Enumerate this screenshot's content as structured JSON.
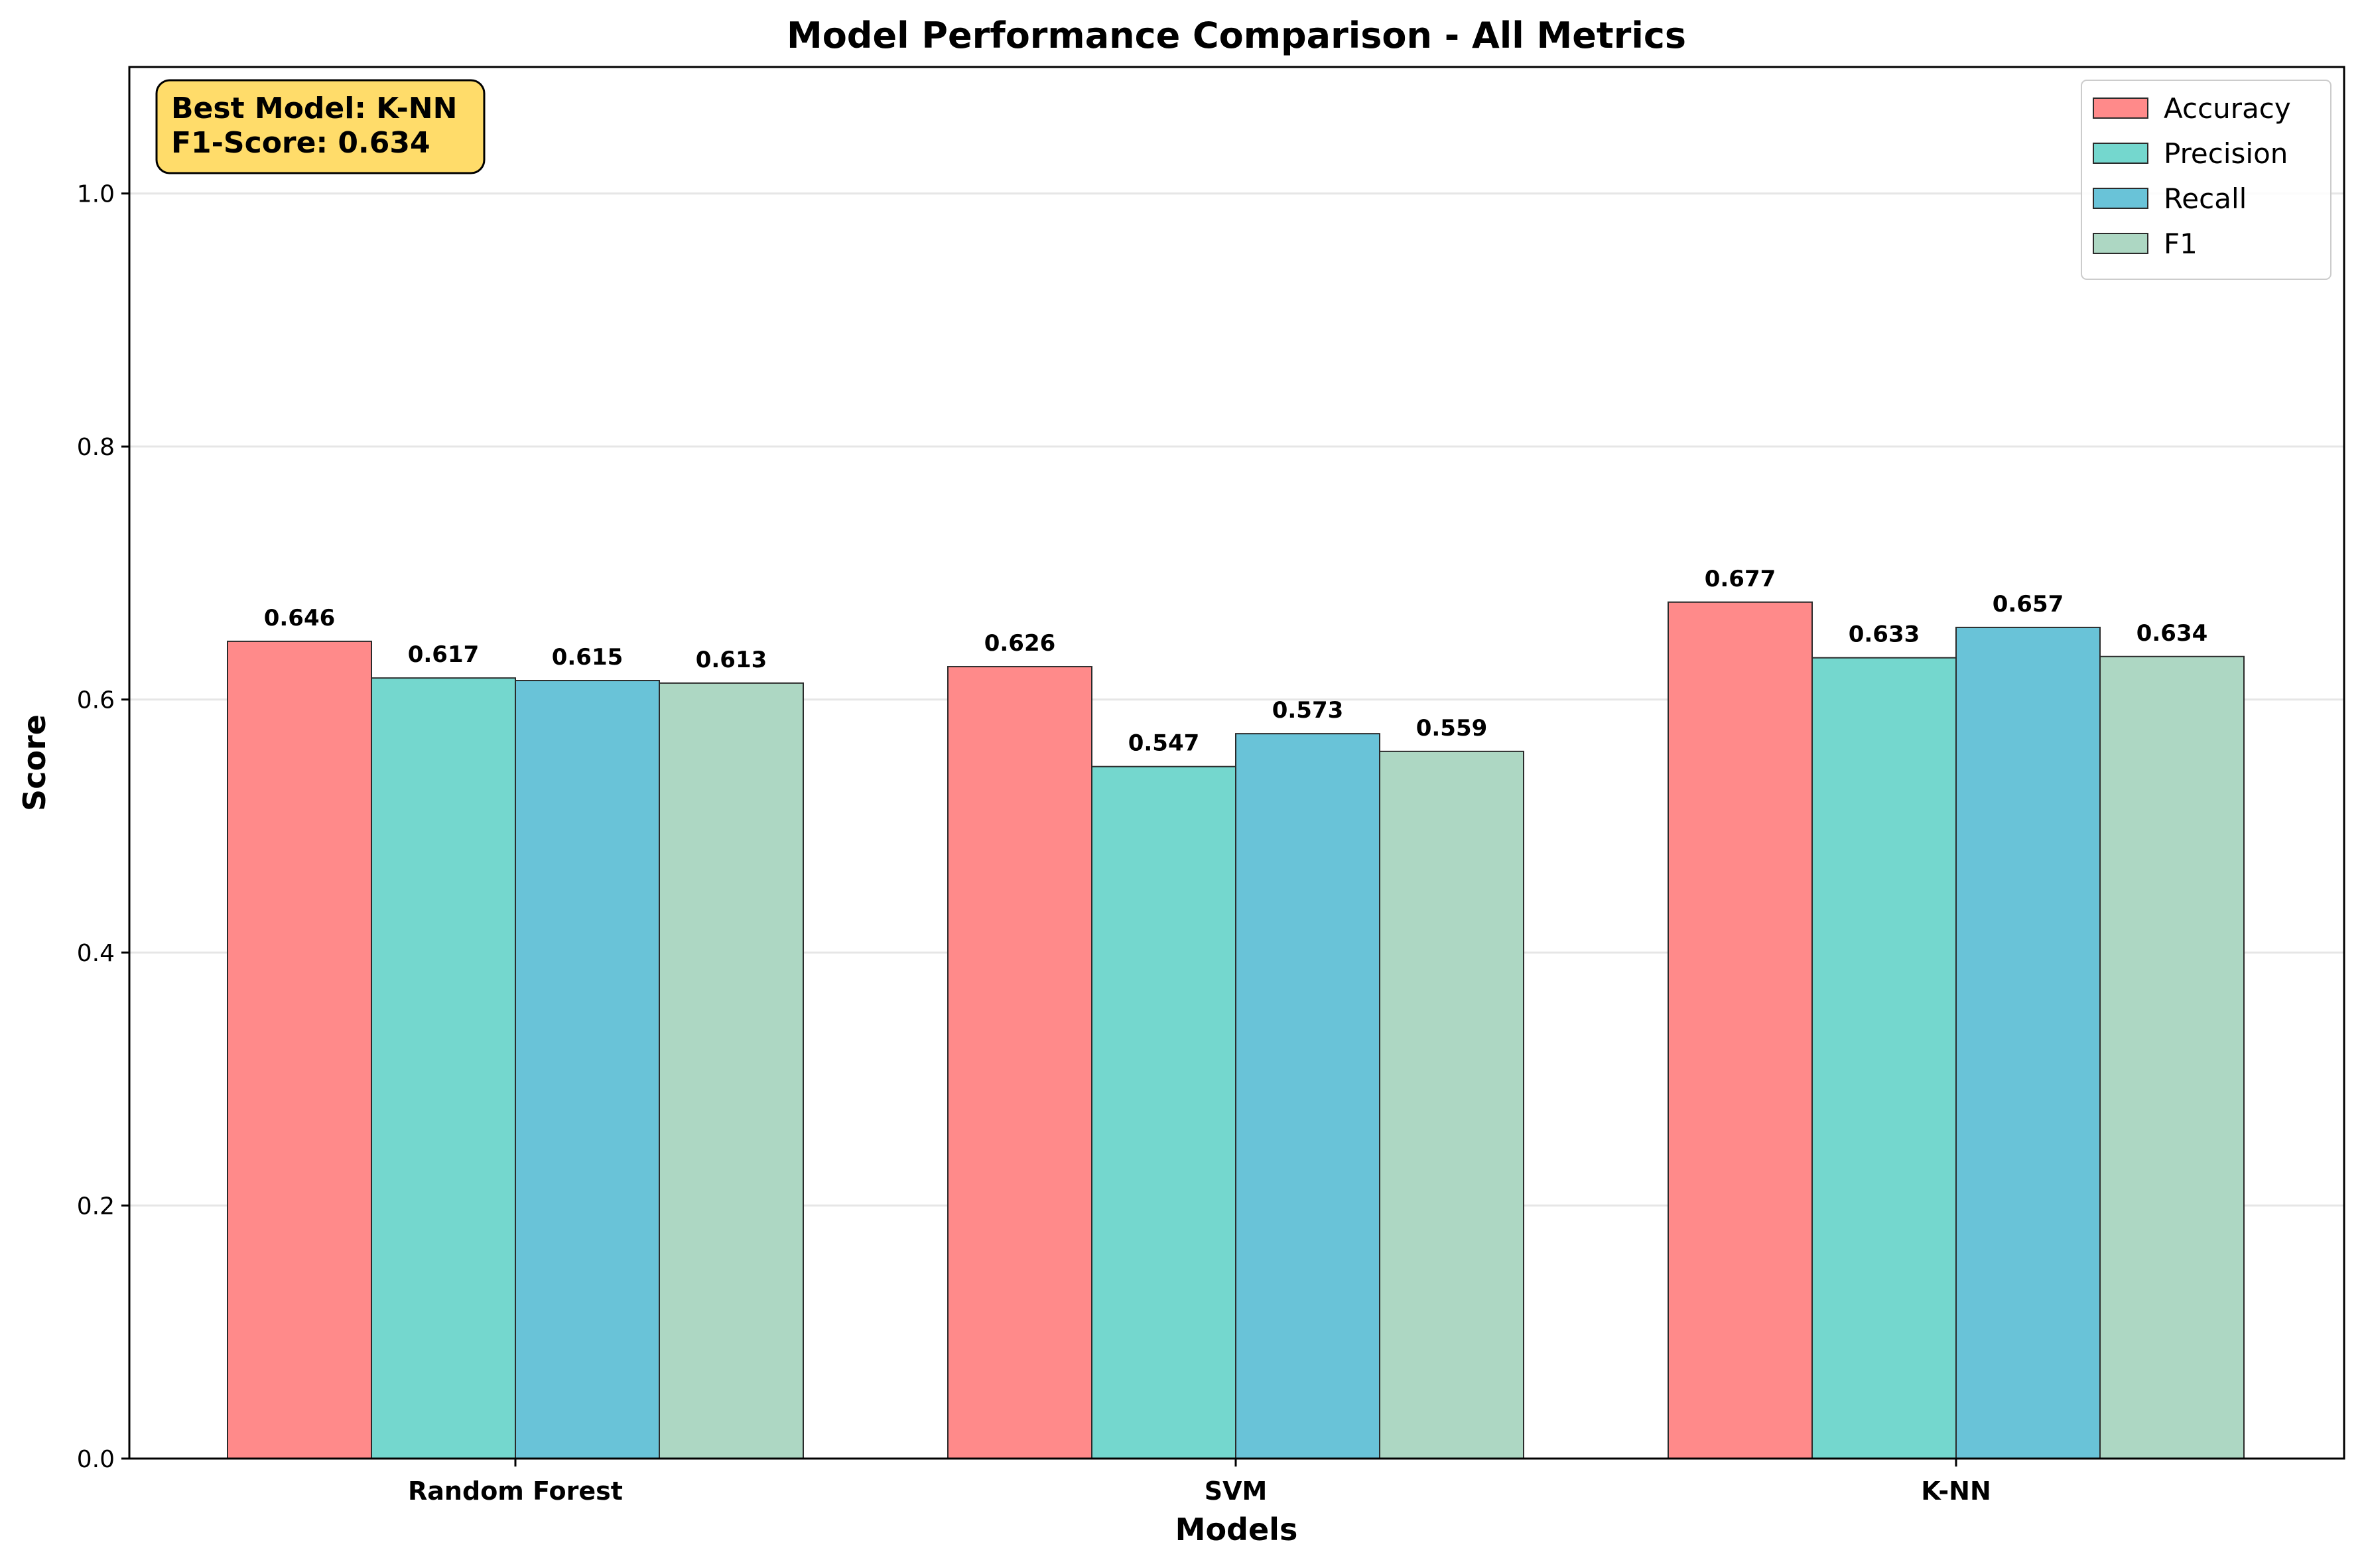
{
  "chart_data": {
    "type": "bar",
    "title": "Model Performance Comparison - All Metrics",
    "xlabel": "Models",
    "ylabel": "Score",
    "categories": [
      "Random Forest",
      "SVM",
      "K-NN"
    ],
    "ylim": [
      0,
      1.1
    ],
    "yticks": [
      "0.0",
      "0.2",
      "0.4",
      "0.6",
      "0.8",
      "1.0"
    ],
    "grid": "horizontal",
    "legend_position": "top-right",
    "series": [
      {
        "name": "Accuracy",
        "color": "#FF8A8A",
        "values": [
          0.646,
          0.626,
          0.677
        ]
      },
      {
        "name": "Precision",
        "color": "#74D7CE",
        "values": [
          0.617,
          0.547,
          0.633
        ]
      },
      {
        "name": "Recall",
        "color": "#69C3D8",
        "values": [
          0.615,
          0.573,
          0.657
        ]
      },
      {
        "name": "F1",
        "color": "#ADD7C3",
        "values": [
          0.613,
          0.559,
          0.634
        ]
      }
    ],
    "annotation": {
      "lines": [
        "Best Model: K-NN",
        "F1-Score: 0.634"
      ],
      "background": "#FFDC6A"
    }
  }
}
